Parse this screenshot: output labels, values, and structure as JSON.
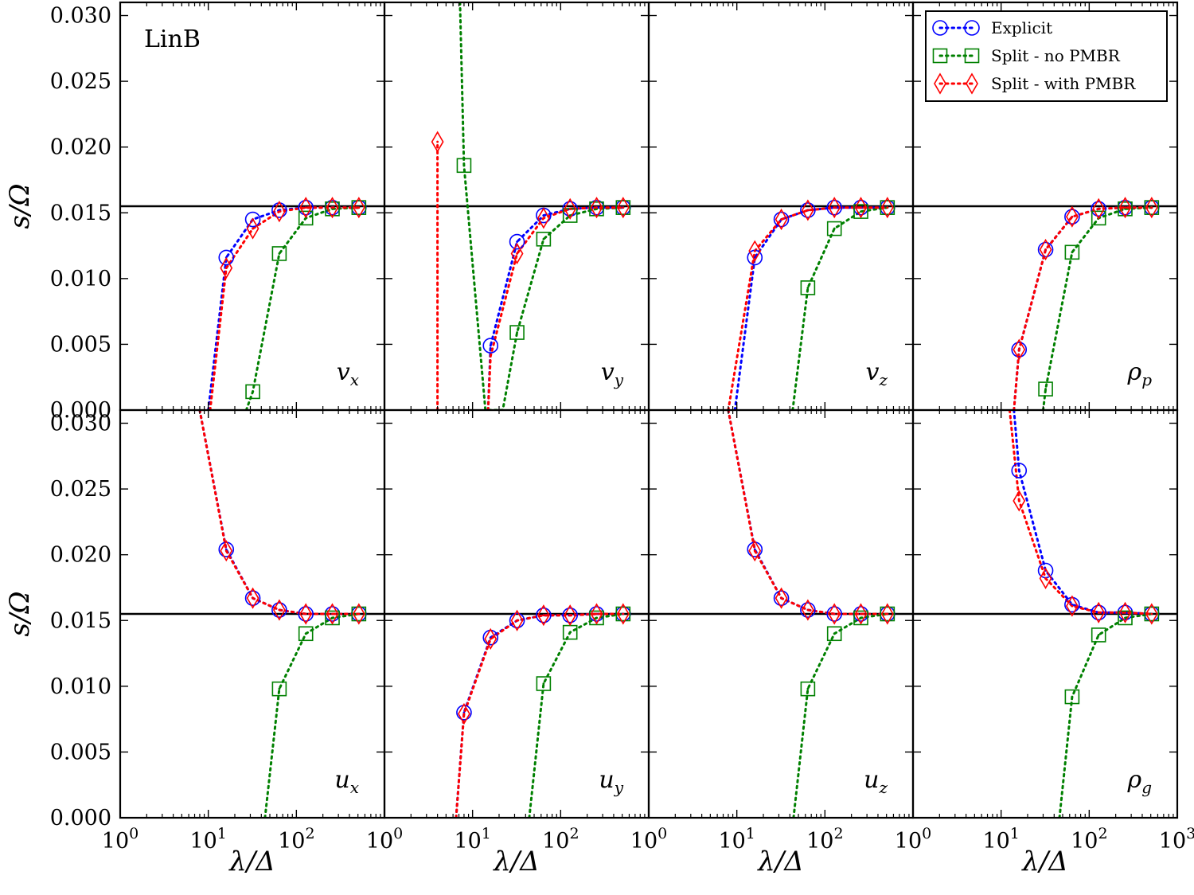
{
  "chart_data": {
    "type": "line",
    "annotation": "LinB",
    "xlabel": "λ/Δ",
    "ylabel": "s/Ω",
    "xscale": "log",
    "xlim": [
      1,
      1000
    ],
    "ylim": [
      0.0,
      0.031
    ],
    "x_ticks": [
      "10^0",
      "10^1",
      "10^2",
      "10^3"
    ],
    "y_ticks": [
      "0.000",
      "0.005",
      "0.010",
      "0.015",
      "0.020",
      "0.025",
      "0.030"
    ],
    "reference_line": 0.0155,
    "legend_placement": "top-right",
    "grid": false,
    "series_styles": [
      {
        "name": "Explicit",
        "color": "#0000ff",
        "marker": "circle"
      },
      {
        "name": "Split - no PMBR",
        "color": "#008000",
        "marker": "square"
      },
      {
        "name": "Split - with PMBR",
        "color": "#ff0000",
        "marker": "diamond"
      }
    ],
    "panels": [
      {
        "label": {
          "base": "v",
          "sub": "x"
        },
        "series": [
          {
            "name": "Explicit",
            "x": [
              10,
              16,
              32,
              64,
              128,
              256,
              512
            ],
            "y": [
              0.0,
              0.0116,
              0.0145,
              0.0152,
              0.0154,
              0.0154,
              0.0154
            ],
            "markers": [
              1,
              1,
              1,
              1,
              1,
              1
            ]
          },
          {
            "name": "Split - no PMBR",
            "x": [
              27,
              32,
              64,
              128,
              256,
              512
            ],
            "y": [
              0.0,
              0.0014,
              0.0119,
              0.0146,
              0.0153,
              0.0154
            ],
            "markers": [
              1,
              1,
              1,
              1,
              1
            ]
          },
          {
            "name": "Split - with PMBR",
            "x": [
              10.5,
              16,
              32,
              64,
              128,
              256,
              512
            ],
            "y": [
              0.0,
              0.0108,
              0.0138,
              0.0151,
              0.0154,
              0.0154,
              0.0154
            ],
            "markers": [
              1,
              1,
              1,
              1,
              1,
              1
            ]
          }
        ]
      },
      {
        "label": {
          "base": "v",
          "sub": "y"
        },
        "series": [
          {
            "name": "Explicit",
            "x": [
              15,
              16,
              32,
              64,
              128,
              256,
              512
            ],
            "y": [
              0.0,
              0.0049,
              0.0128,
              0.0148,
              0.0153,
              0.0154,
              0.0154
            ],
            "markers": [
              1,
              1,
              1,
              1,
              1,
              1
            ]
          },
          {
            "name": "Split - no PMBR",
            "x": [
              7.2,
              8,
              14,
              22,
              32,
              64,
              128,
              256,
              512
            ],
            "y": [
              0.031,
              0.0186,
              0.0,
              0.0,
              0.0059,
              0.013,
              0.0148,
              0.0153,
              0.0154
            ],
            "markers": [
              1,
              0,
              0,
              1,
              1,
              1,
              1,
              1
            ]
          },
          {
            "name": "Split - with PMBR",
            "x": [
              4,
              4,
              15,
              16,
              32,
              64,
              128,
              256,
              512
            ],
            "y": [
              0.0,
              0.0204,
              0.0,
              0.0041,
              0.0119,
              0.0146,
              0.0153,
              0.0154,
              0.0154
            ],
            "markers": [
              1,
              0,
              0,
              1,
              1,
              1,
              1,
              1
            ],
            "breaks": [
              2
            ]
          }
        ]
      },
      {
        "label": {
          "base": "v",
          "sub": "z"
        },
        "series": [
          {
            "name": "Explicit",
            "x": [
              9.5,
              16,
              32,
              64,
              128,
              256,
              512
            ],
            "y": [
              0.0,
              0.0116,
              0.0145,
              0.0152,
              0.0154,
              0.0154,
              0.0154
            ],
            "markers": [
              1,
              1,
              1,
              1,
              1,
              1
            ]
          },
          {
            "name": "Split - no PMBR",
            "x": [
              43,
              64,
              128,
              256,
              512
            ],
            "y": [
              0.0,
              0.0093,
              0.0138,
              0.0151,
              0.0154
            ],
            "markers": [
              1,
              1,
              1,
              1
            ]
          },
          {
            "name": "Split - with PMBR",
            "x": [
              8,
              16,
              32,
              64,
              128,
              256,
              512
            ],
            "y": [
              0.0,
              0.0121,
              0.0145,
              0.0152,
              0.0154,
              0.0154,
              0.0154
            ],
            "markers": [
              1,
              1,
              1,
              1,
              1,
              1
            ]
          }
        ]
      },
      {
        "label": {
          "base": "ρ",
          "sub": "p"
        },
        "series": [
          {
            "name": "Explicit",
            "x": [
              14,
              16,
              32,
              64,
              128,
              256,
              512
            ],
            "y": [
              0.0,
              0.0046,
              0.0122,
              0.0147,
              0.0153,
              0.0154,
              0.0154
            ],
            "markers": [
              1,
              1,
              1,
              1,
              1,
              1
            ]
          },
          {
            "name": "Split - no PMBR",
            "x": [
              30,
              32,
              64,
              128,
              256,
              512
            ],
            "y": [
              0.0,
              0.0016,
              0.012,
              0.0146,
              0.0153,
              0.0154
            ],
            "markers": [
              1,
              1,
              1,
              1,
              1
            ]
          },
          {
            "name": "Split - with PMBR",
            "x": [
              14,
              16,
              32,
              64,
              128,
              256,
              512
            ],
            "y": [
              0.0,
              0.0046,
              0.0122,
              0.0147,
              0.0153,
              0.0154,
              0.0154
            ],
            "markers": [
              1,
              1,
              1,
              1,
              1,
              1
            ]
          }
        ]
      },
      {
        "label": {
          "base": "u",
          "sub": "x"
        },
        "series": [
          {
            "name": "Explicit",
            "x": [
              8,
              16,
              32,
              64,
              128,
              256,
              512
            ],
            "y": [
              0.031,
              0.0204,
              0.0167,
              0.0158,
              0.0155,
              0.0155,
              0.0155
            ],
            "markers": [
              1,
              1,
              1,
              1,
              1,
              1
            ]
          },
          {
            "name": "Split - no PMBR",
            "x": [
              44,
              64,
              128,
              256,
              512
            ],
            "y": [
              0.0,
              0.0098,
              0.014,
              0.0152,
              0.0155
            ],
            "markers": [
              1,
              1,
              1,
              1
            ]
          },
          {
            "name": "Split - with PMBR",
            "x": [
              8,
              16,
              32,
              64,
              128,
              256,
              512
            ],
            "y": [
              0.031,
              0.0203,
              0.0167,
              0.0158,
              0.0155,
              0.0155,
              0.0155
            ],
            "markers": [
              1,
              1,
              1,
              1,
              1,
              1
            ]
          }
        ]
      },
      {
        "label": {
          "base": "u",
          "sub": "y"
        },
        "series": [
          {
            "name": "Explicit",
            "x": [
              6.5,
              8,
              16,
              32,
              64,
              128,
              256,
              512
            ],
            "y": [
              0.0,
              0.008,
              0.0137,
              0.015,
              0.0154,
              0.0154,
              0.0155,
              0.0155
            ],
            "markers": [
              1,
              1,
              1,
              1,
              1,
              1,
              1
            ]
          },
          {
            "name": "Split - no PMBR",
            "x": [
              44,
              64,
              128,
              256,
              512
            ],
            "y": [
              0.0,
              0.0102,
              0.0141,
              0.0152,
              0.0155
            ],
            "markers": [
              1,
              1,
              1,
              1
            ]
          },
          {
            "name": "Split - with PMBR",
            "x": [
              6.5,
              8,
              16,
              32,
              64,
              128,
              256,
              512
            ],
            "y": [
              0.0,
              0.0079,
              0.0136,
              0.015,
              0.0154,
              0.0154,
              0.0155,
              0.0155
            ],
            "markers": [
              1,
              1,
              1,
              1,
              1,
              1,
              1
            ]
          }
        ]
      },
      {
        "label": {
          "base": "u",
          "sub": "z"
        },
        "series": [
          {
            "name": "Explicit",
            "x": [
              8,
              16,
              32,
              64,
              128,
              256,
              512
            ],
            "y": [
              0.031,
              0.0204,
              0.0167,
              0.0158,
              0.0155,
              0.0155,
              0.0155
            ],
            "markers": [
              1,
              1,
              1,
              1,
              1,
              1
            ]
          },
          {
            "name": "Split - no PMBR",
            "x": [
              44,
              64,
              128,
              256,
              512
            ],
            "y": [
              0.0,
              0.0098,
              0.014,
              0.0152,
              0.0155
            ],
            "markers": [
              1,
              1,
              1,
              1
            ]
          },
          {
            "name": "Split - with PMBR",
            "x": [
              8,
              16,
              32,
              64,
              128,
              256,
              512
            ],
            "y": [
              0.031,
              0.0203,
              0.0167,
              0.0158,
              0.0155,
              0.0155,
              0.0155
            ],
            "markers": [
              1,
              1,
              1,
              1,
              1,
              1
            ]
          }
        ]
      },
      {
        "label": {
          "base": "ρ",
          "sub": "g"
        },
        "series": [
          {
            "name": "Explicit",
            "x": [
              14,
              16,
              32,
              64,
              128,
              256,
              512
            ],
            "y": [
              0.031,
              0.0264,
              0.0188,
              0.0162,
              0.0156,
              0.0156,
              0.0155
            ],
            "markers": [
              1,
              1,
              1,
              1,
              1,
              1
            ]
          },
          {
            "name": "Split - no PMBR",
            "x": [
              46,
              64,
              128,
              256,
              512
            ],
            "y": [
              0.0,
              0.0092,
              0.0139,
              0.0152,
              0.0155
            ],
            "markers": [
              1,
              1,
              1,
              1
            ]
          },
          {
            "name": "Split - with PMBR",
            "x": [
              12.5,
              16,
              32,
              64,
              128,
              256,
              512
            ],
            "y": [
              0.031,
              0.0241,
              0.0182,
              0.0161,
              0.0156,
              0.0156,
              0.0155
            ],
            "markers": [
              1,
              1,
              1,
              1,
              1,
              1
            ]
          }
        ]
      }
    ]
  }
}
